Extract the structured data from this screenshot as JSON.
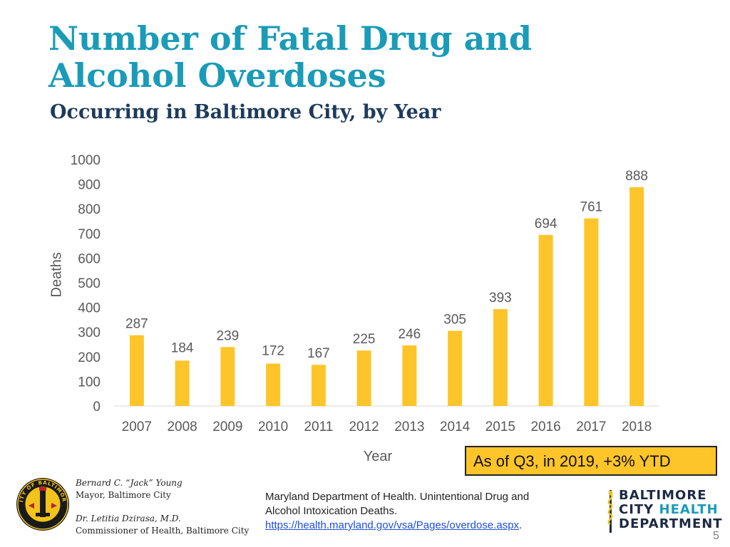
{
  "slide": {
    "title": "Number of Fatal Drug and Alcohol Overdoses",
    "subtitle": "Occurring in Baltimore City, by Year",
    "note": "As of Q3, in 2019, +3% YTD",
    "page_number": "5"
  },
  "footer": {
    "official1_name": "Bernard C. “Jack” Young",
    "official1_title": "Mayor, Baltimore City",
    "official2_name": "Dr. Letitia Dzirasa, M.D.",
    "official2_title": "Commissioner of Health, Baltimore City",
    "source_line1": "Maryland Department of Health.  Unintentional Drug and",
    "source_line2": "Alcohol Intoxication Deaths.",
    "source_url": "https://health.maryland.gov/vsa/Pages/overdose.aspx",
    "source_tail": ".",
    "seal_text": "CITY OF BALTIMORE",
    "logo_line1": "BALTIMORE",
    "logo_line2a": "CITY ",
    "logo_line2b": "HEALTH",
    "logo_line3": "DEPARTMENT"
  },
  "colors": {
    "bar": "#fdc52a",
    "title": "#1a9bb8",
    "subtitle": "#1d3b5c",
    "axis_text": "#595959"
  },
  "chart_data": {
    "type": "bar",
    "title": "Number of Fatal Drug and Alcohol Overdoses",
    "xlabel": "Year",
    "ylabel": "Deaths",
    "ylim": [
      0,
      1000
    ],
    "yticks": [
      0,
      100,
      200,
      300,
      400,
      500,
      600,
      700,
      800,
      900,
      1000
    ],
    "grid": false,
    "categories": [
      "2007",
      "2008",
      "2009",
      "2010",
      "2011",
      "2012",
      "2013",
      "2014",
      "2015",
      "2016",
      "2017",
      "2018"
    ],
    "values": [
      287,
      184,
      239,
      172,
      167,
      225,
      246,
      305,
      393,
      694,
      761,
      888
    ]
  }
}
